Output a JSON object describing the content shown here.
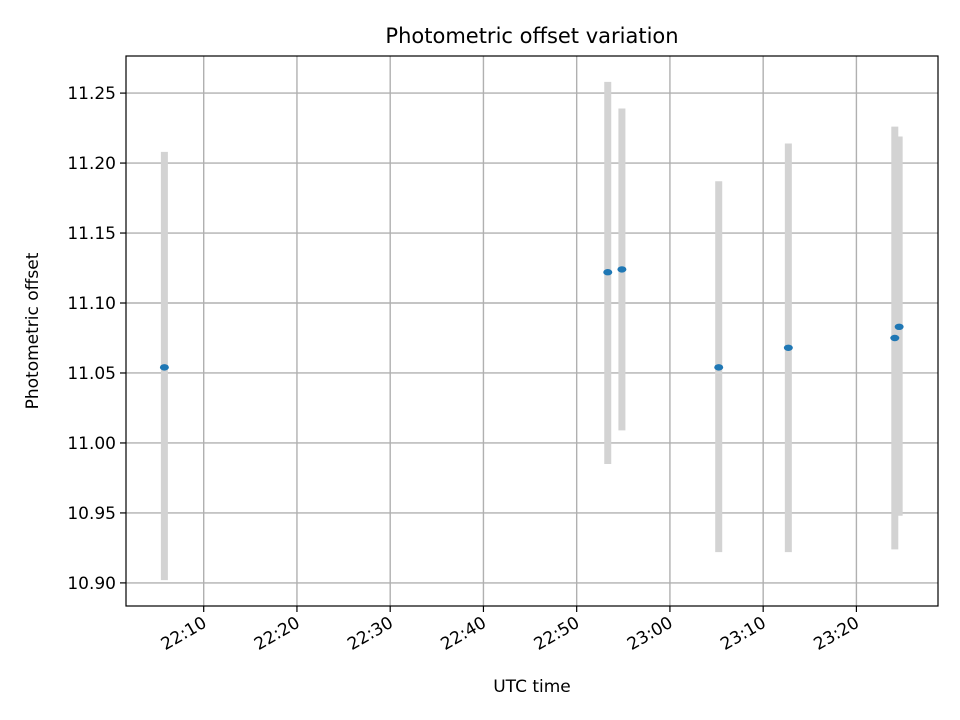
{
  "chart_data": {
    "type": "scatter",
    "title": "Photometric offset variation",
    "xlabel": "UTC time",
    "ylabel": "Photometric offset",
    "x_ticks": [
      "22:10",
      "22:20",
      "22:30",
      "22:40",
      "22:50",
      "23:00",
      "23:10",
      "23:20"
    ],
    "y_ticks": [
      "10.90",
      "10.95",
      "11.00",
      "11.05",
      "11.10",
      "11.15",
      "11.20",
      "11.25"
    ],
    "xlim": [
      "22:01:40",
      "23:28:45"
    ],
    "ylim": [
      10.8835,
      11.2765
    ],
    "grid": true,
    "point_color": "#1f77b4",
    "errorbar_color": "#d3d3d3",
    "points": [
      {
        "x": "22:05:47",
        "y": 11.054,
        "ylow": 10.902,
        "yhigh": 11.208
      },
      {
        "x": "22:53:20",
        "y": 11.122,
        "ylow": 10.985,
        "yhigh": 11.258
      },
      {
        "x": "22:54:51",
        "y": 11.124,
        "ylow": 11.009,
        "yhigh": 11.239
      },
      {
        "x": "23:05:14",
        "y": 11.054,
        "ylow": 10.922,
        "yhigh": 11.187
      },
      {
        "x": "23:12:42",
        "y": 11.068,
        "ylow": 10.922,
        "yhigh": 11.214
      },
      {
        "x": "23:24:07",
        "y": 11.075,
        "ylow": 10.924,
        "yhigh": 11.226
      },
      {
        "x": "23:24:35",
        "y": 11.083,
        "ylow": 10.948,
        "yhigh": 11.219
      }
    ]
  }
}
